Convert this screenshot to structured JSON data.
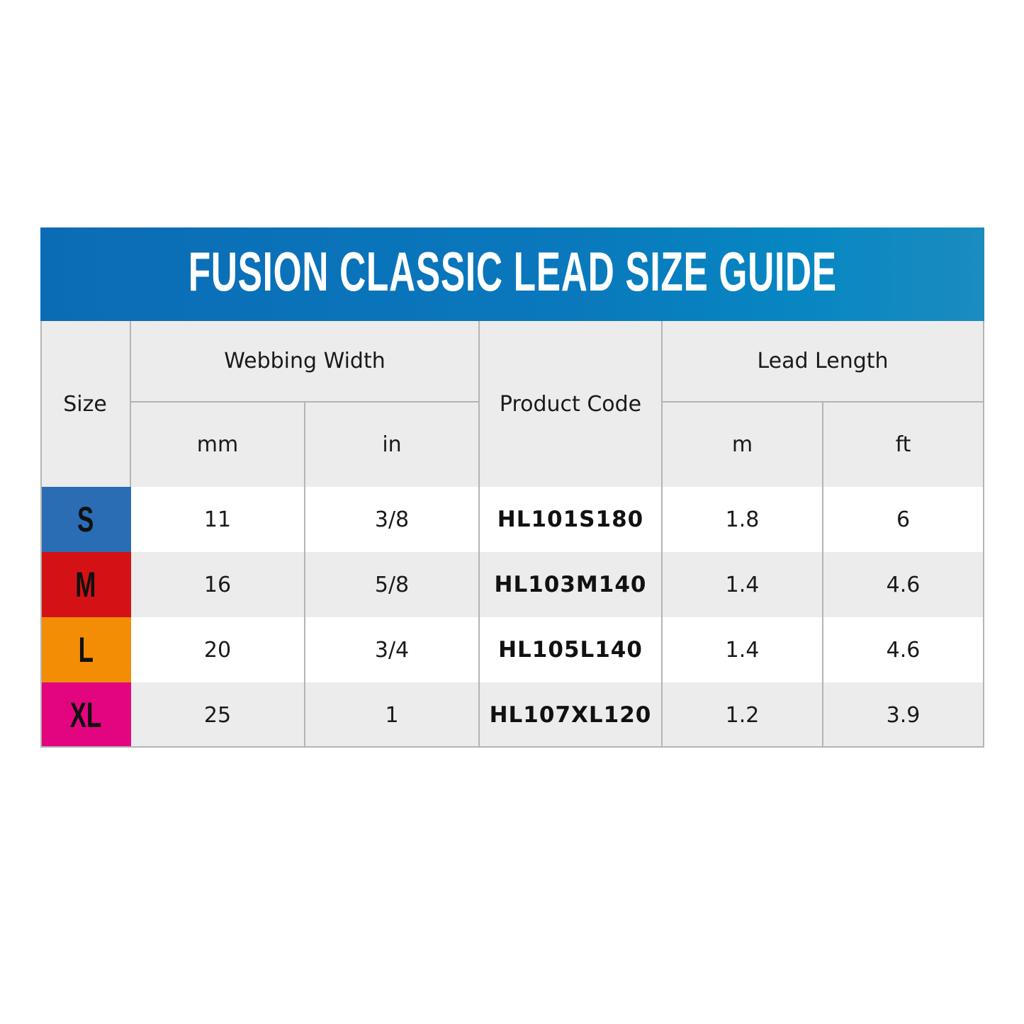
{
  "title": "FUSION CLASSIC LEAD SIZE GUIDE",
  "headers": {
    "size": "Size",
    "webbing_width": "Webbing Width",
    "mm": "mm",
    "in": "in",
    "product_code": "Product Code",
    "lead_length": "Lead Length",
    "m": "m",
    "ft": "ft"
  },
  "rows": [
    {
      "size": "S",
      "color": "#2a6db5",
      "mm": "11",
      "in": "3/8",
      "code": "HL101S180",
      "m": "1.8",
      "ft": "6"
    },
    {
      "size": "M",
      "color": "#d41215",
      "mm": "16",
      "in": "5/8",
      "code": "HL103M140",
      "m": "1.4",
      "ft": "4.6"
    },
    {
      "size": "L",
      "color": "#f28d05",
      "mm": "20",
      "in": "3/4",
      "code": "HL105L140",
      "m": "1.4",
      "ft": "4.6"
    },
    {
      "size": "XL",
      "color": "#e2057f",
      "mm": "25",
      "in": "1",
      "code": "HL107XL120",
      "m": "1.2",
      "ft": "3.9"
    }
  ]
}
